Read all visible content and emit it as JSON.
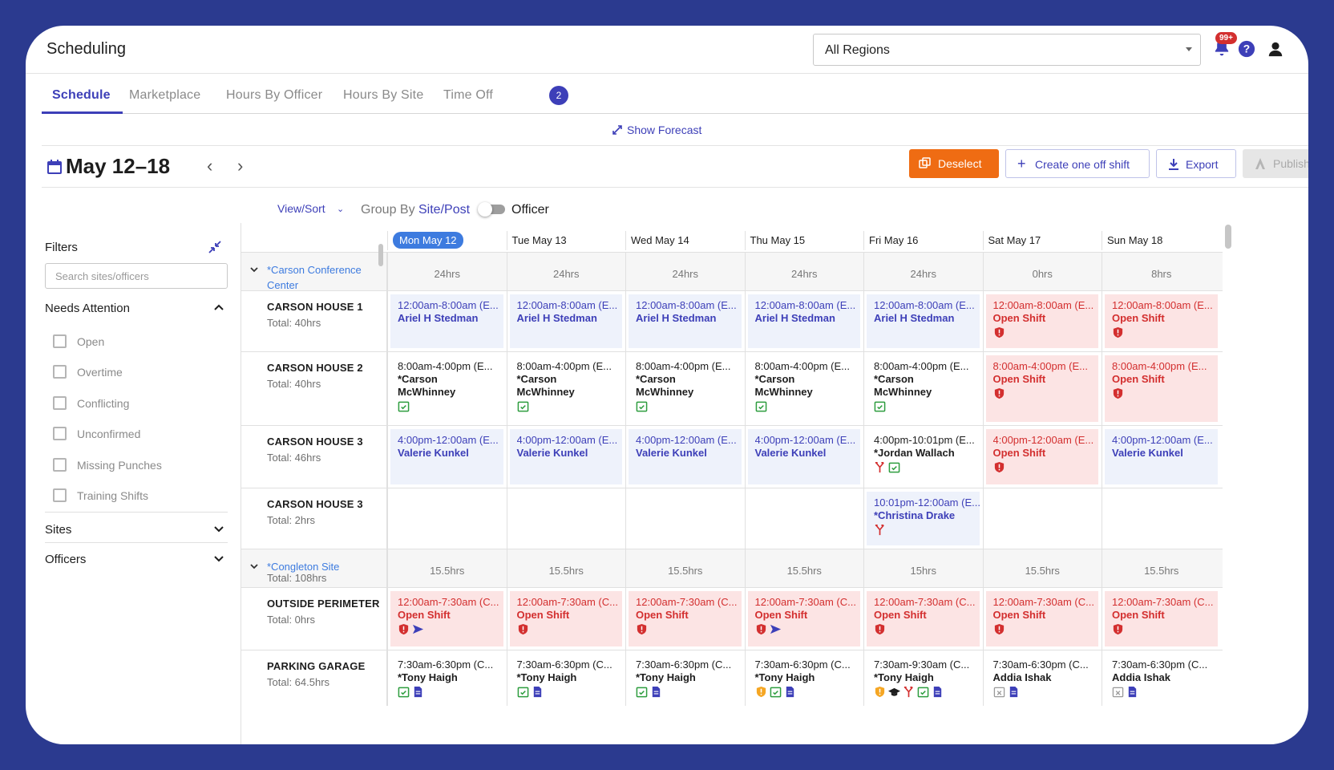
{
  "app": {
    "title": "Scheduling"
  },
  "header": {
    "region": "All Regions",
    "notifications_badge": "99+"
  },
  "tabs": [
    {
      "label": "Schedule"
    },
    {
      "label": "Marketplace"
    },
    {
      "label": "Hours By Officer"
    },
    {
      "label": "Hours By Site"
    },
    {
      "label": "Time Off",
      "badge": "2"
    }
  ],
  "forecast_label": "Show Forecast",
  "week": {
    "title": "May 12–18"
  },
  "actions": {
    "deselect": "Deselect",
    "create": "Create one off shift",
    "export": "Export",
    "publish": "Publish"
  },
  "viewbar": {
    "viewsort": "View/Sort",
    "groupby": "Group By",
    "site_post": "Site/Post",
    "officer": "Officer"
  },
  "filters": {
    "title": "Filters",
    "search_placeholder": "Search sites/officers",
    "needs_attention": "Needs Attention",
    "options": [
      "Open",
      "Overtime",
      "Conflicting",
      "Unconfirmed",
      "Missing Punches",
      "Training Shifts"
    ],
    "sites": "Sites",
    "officers": "Officers"
  },
  "days": [
    "Mon May 12",
    "Tue May 13",
    "Wed May 14",
    "Thu May 15",
    "Fri May 16",
    "Sat May 17",
    "Sun May 18"
  ],
  "rows": [
    {
      "type": "site",
      "name": "*Carson Conference\nCenter",
      "cells": [
        "24hrs",
        "24hrs",
        "24hrs",
        "24hrs",
        "24hrs",
        "0hrs",
        "8hrs"
      ]
    },
    {
      "type": "post",
      "name": "CARSON HOUSE 1",
      "total": "Total: 40hrs",
      "cells": [
        {
          "s": "blue",
          "t": "12:00am-8:00am (E...",
          "n": "Ariel H Stedman",
          "i": []
        },
        {
          "s": "blue",
          "t": "12:00am-8:00am (E...",
          "n": "Ariel H Stedman",
          "i": []
        },
        {
          "s": "blue",
          "t": "12:00am-8:00am (E...",
          "n": "Ariel H Stedman",
          "i": []
        },
        {
          "s": "blue",
          "t": "12:00am-8:00am (E...",
          "n": "Ariel H Stedman",
          "i": []
        },
        {
          "s": "blue",
          "t": "12:00am-8:00am (E...",
          "n": "Ariel H Stedman",
          "i": []
        },
        {
          "s": "red",
          "t": "12:00am-8:00am (E...",
          "n": "Open Shift",
          "i": [
            "shield-red"
          ]
        },
        {
          "s": "red",
          "t": "12:00am-8:00am (E...",
          "n": "Open Shift",
          "i": [
            "shield-red"
          ]
        }
      ]
    },
    {
      "type": "post",
      "name": "CARSON HOUSE 2",
      "total": "Total: 40hrs",
      "cells": [
        {
          "s": "plain",
          "t": "8:00am-4:00pm (E...",
          "n": "*Carson\nMcWhinney",
          "i": [
            "check-green"
          ]
        },
        {
          "s": "plain",
          "t": "8:00am-4:00pm (E...",
          "n": "*Carson\nMcWhinney",
          "i": [
            "check-green"
          ]
        },
        {
          "s": "plain",
          "t": "8:00am-4:00pm (E...",
          "n": "*Carson\nMcWhinney",
          "i": [
            "check-green"
          ]
        },
        {
          "s": "plain",
          "t": "8:00am-4:00pm (E...",
          "n": "*Carson\nMcWhinney",
          "i": [
            "check-green"
          ]
        },
        {
          "s": "plain",
          "t": "8:00am-4:00pm (E...",
          "n": "*Carson\nMcWhinney",
          "i": [
            "check-green"
          ]
        },
        {
          "s": "red",
          "t": "8:00am-4:00pm (E...",
          "n": "Open Shift",
          "i": [
            "shield-red"
          ]
        },
        {
          "s": "red",
          "t": "8:00am-4:00pm (E...",
          "n": "Open Shift",
          "i": [
            "shield-red"
          ]
        }
      ]
    },
    {
      "type": "post",
      "name": "CARSON HOUSE 3",
      "total": "Total: 46hrs",
      "cells": [
        {
          "s": "blue",
          "t": "4:00pm-12:00am (E...",
          "n": "Valerie Kunkel",
          "i": []
        },
        {
          "s": "blue",
          "t": "4:00pm-12:00am (E...",
          "n": "Valerie Kunkel",
          "i": []
        },
        {
          "s": "blue",
          "t": "4:00pm-12:00am (E...",
          "n": "Valerie Kunkel",
          "i": []
        },
        {
          "s": "blue",
          "t": "4:00pm-12:00am (E...",
          "n": "Valerie Kunkel",
          "i": []
        },
        {
          "s": "plain",
          "t": "4:00pm-10:01pm (E...",
          "n": "*Jordan Wallach",
          "i": [
            "split-red",
            "check-green"
          ]
        },
        {
          "s": "red",
          "t": "4:00pm-12:00am (E...",
          "n": "Open Shift",
          "i": [
            "shield-red"
          ]
        },
        {
          "s": "blue",
          "t": "4:00pm-12:00am (E...",
          "n": "Valerie Kunkel",
          "i": []
        }
      ]
    },
    {
      "type": "post",
      "name": "CARSON HOUSE 3",
      "total": "Total: 2hrs",
      "cells": [
        null,
        null,
        null,
        null,
        {
          "s": "blue",
          "t": "10:01pm-12:00am (E...",
          "n": "*Christina Drake",
          "i": [
            "split-red"
          ]
        },
        null,
        null
      ]
    },
    {
      "type": "site",
      "name": "*Congleton Site",
      "total": "Total: 108hrs",
      "cells": [
        "15.5hrs",
        "15.5hrs",
        "15.5hrs",
        "15.5hrs",
        "15hrs",
        "15.5hrs",
        "15.5hrs"
      ]
    },
    {
      "type": "post",
      "name": "OUTSIDE PERIMETER",
      "total": "Total: 0hrs",
      "cells": [
        {
          "s": "red",
          "t": "12:00am-7:30am (C...",
          "n": "Open Shift",
          "i": [
            "shield-red",
            "send-blue"
          ]
        },
        {
          "s": "red",
          "t": "12:00am-7:30am (C...",
          "n": "Open Shift",
          "i": [
            "shield-red"
          ]
        },
        {
          "s": "red",
          "t": "12:00am-7:30am (C...",
          "n": "Open Shift",
          "i": [
            "shield-red"
          ]
        },
        {
          "s": "red",
          "t": "12:00am-7:30am (C...",
          "n": "Open Shift",
          "i": [
            "shield-red",
            "send-blue"
          ]
        },
        {
          "s": "red",
          "t": "12:00am-7:30am (C...",
          "n": "Open Shift",
          "i": [
            "shield-red"
          ]
        },
        {
          "s": "red",
          "t": "12:00am-7:30am (C...",
          "n": "Open Shift",
          "i": [
            "shield-red"
          ]
        },
        {
          "s": "red",
          "t": "12:00am-7:30am (C...",
          "n": "Open Shift",
          "i": [
            "shield-red"
          ]
        }
      ]
    },
    {
      "type": "post",
      "name": "PARKING GARAGE",
      "total": "Total: 64.5hrs",
      "cells": [
        {
          "s": "plain",
          "t": "7:30am-6:30pm (C...",
          "n": "*Tony Haigh",
          "i": [
            "check-green",
            "doc-blue"
          ]
        },
        {
          "s": "plain",
          "t": "7:30am-6:30pm (C...",
          "n": "*Tony Haigh",
          "i": [
            "check-green",
            "doc-blue"
          ]
        },
        {
          "s": "plain",
          "t": "7:30am-6:30pm (C...",
          "n": "*Tony Haigh",
          "i": [
            "check-green",
            "doc-blue"
          ]
        },
        {
          "s": "plain",
          "t": "7:30am-6:30pm (C...",
          "n": "*Tony Haigh",
          "i": [
            "shield-orange",
            "check-green",
            "doc-blue"
          ]
        },
        {
          "s": "plain",
          "t": "7:30am-9:30am (C...",
          "n": "*Tony Haigh",
          "i": [
            "shield-orange",
            "cap-black",
            "split-red",
            "check-green",
            "doc-blue"
          ]
        },
        {
          "s": "plain",
          "t": "7:30am-6:30pm (C...",
          "n": "Addia Ishak",
          "i": [
            "cal-x-gray",
            "doc-blue"
          ]
        },
        {
          "s": "plain",
          "t": "7:30am-6:30pm (C...",
          "n": "Addia Ishak",
          "i": [
            "cal-x-gray",
            "doc-blue"
          ]
        }
      ]
    }
  ]
}
